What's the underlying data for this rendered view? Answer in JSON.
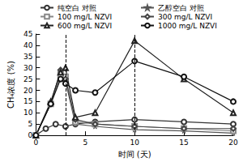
{
  "chart_data": {
    "type": "line",
    "x_label": "时间 (天)",
    "y_label": "CH₄浓度 (%)",
    "xlim": [
      0,
      20
    ],
    "xticks": [
      0,
      5,
      10,
      15,
      20
    ],
    "ylim": [
      0,
      45
    ],
    "yticks": [
      0,
      5,
      10,
      15,
      20,
      25,
      30,
      35,
      40,
      45
    ],
    "reference_lines": [
      3,
      10
    ],
    "grid": false,
    "series": [
      {
        "name": "纯空白 对照",
        "color": "#333333",
        "marker": "circle",
        "line_style": "solid",
        "x": [
          0,
          1,
          2,
          3,
          4,
          6,
          10,
          15,
          20
        ],
        "values": [
          0,
          3,
          5,
          4,
          5,
          6,
          7,
          6,
          5
        ]
      },
      {
        "name": "乙醇空白 对照",
        "color": "#555555",
        "marker": "star",
        "line_style": "solid",
        "x": [
          0,
          1.5,
          2.5,
          3,
          4,
          6,
          10,
          15,
          20
        ],
        "values": [
          0,
          14,
          26,
          24,
          5,
          4,
          2.5,
          2,
          1
        ]
      },
      {
        "name": "100 mg/L NZVI",
        "color": "#888888",
        "marker": "square",
        "line_style": "solid",
        "x": [
          0,
          1.5,
          2.5,
          3,
          4,
          6,
          10,
          15,
          20
        ],
        "values": [
          0,
          14,
          27,
          26,
          6,
          5,
          4,
          3,
          2
        ]
      },
      {
        "name": "300 mg/L NZVI",
        "color": "#444444",
        "marker": "diamond",
        "line_style": "solid",
        "x": [
          0,
          1.5,
          2.5,
          3,
          4,
          6,
          10,
          15,
          20
        ],
        "values": [
          0,
          14,
          29,
          25,
          7,
          5,
          4,
          3,
          3
        ]
      },
      {
        "name": "600 mg/L NZVI",
        "color": "#222222",
        "marker": "triangle",
        "line_style": "solid",
        "x": [
          0,
          1.5,
          2.5,
          3,
          4,
          6,
          10,
          15,
          20
        ],
        "values": [
          0,
          15,
          28,
          30,
          8,
          10,
          42,
          25,
          10
        ]
      },
      {
        "name": "1000 mg/L NZVI",
        "color": "#111111",
        "marker": "circle",
        "line_style": "solid",
        "x": [
          0,
          1.5,
          2.5,
          3,
          4,
          6,
          10,
          15,
          20
        ],
        "values": [
          0,
          14,
          25,
          23,
          20,
          19,
          33,
          26,
          15
        ]
      }
    ]
  }
}
